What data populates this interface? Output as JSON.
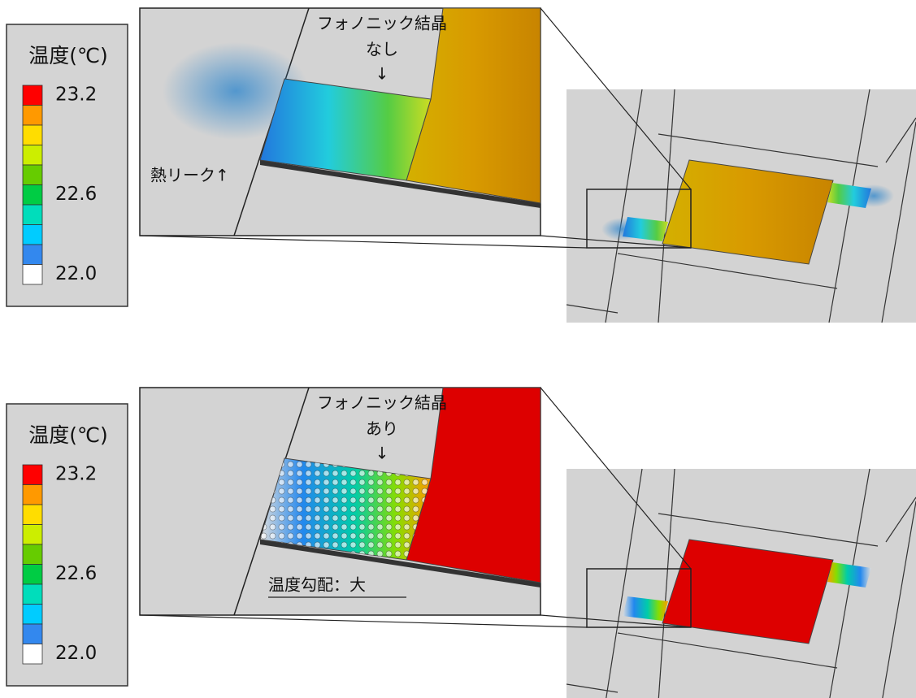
{
  "panels": [
    {
      "legend": {
        "title": "温度(℃)",
        "labels": [
          "23.2",
          "22.6",
          "22.0"
        ],
        "colors": [
          "#ff0000",
          "#ff9900",
          "#ffdd00",
          "#ccee00",
          "#66cc00",
          "#00cc44",
          "#00ddbb",
          "#00ccff",
          "#3388ee",
          "#ffffff"
        ]
      },
      "annotations": {
        "crystal": "フォノニック結晶",
        "state": "なし",
        "arrow": "↓",
        "leak": "熱リーク↑"
      }
    },
    {
      "legend": {
        "title": "温度(℃)",
        "labels": [
          "23.2",
          "22.6",
          "22.0"
        ],
        "colors": [
          "#ff0000",
          "#ff9900",
          "#ffdd00",
          "#ccee00",
          "#66cc00",
          "#00cc44",
          "#00ddbb",
          "#00ccff",
          "#3388ee",
          "#ffffff"
        ]
      },
      "annotations": {
        "crystal": "フォノニック結晶",
        "state": "あり",
        "arrow": "↓",
        "gradient": "温度勾配：大"
      }
    }
  ]
}
